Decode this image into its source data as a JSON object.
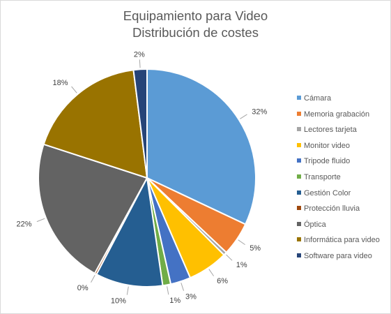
{
  "chart_data": {
    "type": "pie",
    "title": "Equipamiento para Video",
    "subtitle": "Distribución de costes",
    "categories": [
      "Cámara",
      "Memoria grabación",
      "Lectores tarjeta",
      "Monitor video",
      "Tripode fluido",
      "Transporte",
      "Gestión Color",
      "Protección lluvia",
      "Óptica",
      "Informática para video",
      "Software para video"
    ],
    "values": [
      32,
      5,
      0.5,
      6,
      3,
      1.2,
      10,
      0.3,
      22,
      18,
      2
    ],
    "data_labels": [
      "32%",
      "5%",
      "1%",
      "6%",
      "3%",
      "1%",
      "10%",
      "0%",
      "22%",
      "18%",
      "2%"
    ],
    "colors": [
      "#5B9BD5",
      "#ED7D31",
      "#A5A5A5",
      "#FFC000",
      "#4472C4",
      "#70AD47",
      "#255E91",
      "#9E480E",
      "#636363",
      "#997300",
      "#264478"
    ],
    "legend_position": "right",
    "start_angle_deg": 0,
    "direction": "clockwise"
  }
}
